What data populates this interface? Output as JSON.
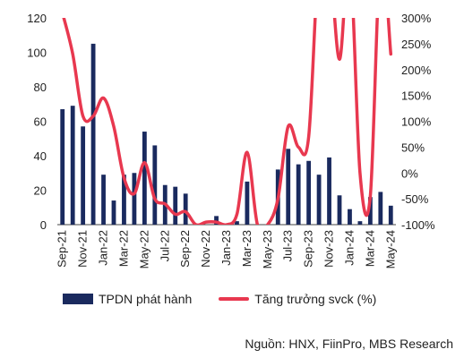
{
  "chart_data": {
    "type": "bar",
    "categories": [
      "Sep-21",
      "Oct-21",
      "Nov-21",
      "Dec-21",
      "Jan-22",
      "Feb-22",
      "Mar-22",
      "Apr-22",
      "May-22",
      "Jun-22",
      "Jul-22",
      "Aug-22",
      "Sep-22",
      "Oct-22",
      "Nov-22",
      "Dec-22",
      "Jan-23",
      "Feb-23",
      "Mar-23",
      "Apr-23",
      "May-23",
      "Jun-23",
      "Jul-23",
      "Aug-23",
      "Sep-23",
      "Oct-23",
      "Nov-23",
      "Dec-23",
      "Jan-24",
      "Feb-24",
      "Mar-24",
      "Apr-24",
      "May-24"
    ],
    "x_tick_labels": [
      "Sep-21",
      "Nov-21",
      "Jan-22",
      "Mar-22",
      "May-22",
      "Jul-22",
      "Sep-22",
      "Nov-22",
      "Jan-23",
      "Mar-23",
      "May-23",
      "Jul-23",
      "Sep-23",
      "Nov-23",
      "Jan-24",
      "Mar-24",
      "May-24"
    ],
    "series": [
      {
        "name": "TPDN phát hành",
        "type": "bar",
        "axis": "left",
        "color": "#1a2a5e",
        "values": [
          67,
          69,
          57,
          105,
          29,
          14,
          29,
          30,
          54,
          46,
          23,
          22,
          18,
          0,
          0,
          5,
          0,
          2,
          25,
          0,
          0,
          32,
          44,
          35,
          37,
          29,
          39,
          17,
          9,
          2,
          16,
          19,
          11
        ]
      },
      {
        "name": "Tăng trưởng svck (%)",
        "type": "line",
        "axis": "right",
        "color": "#e8384f",
        "values": [
          310,
          230,
          110,
          110,
          145,
          90,
          -10,
          -40,
          20,
          -50,
          -60,
          -80,
          -75,
          -100,
          -95,
          -95,
          -100,
          -80,
          40,
          -100,
          -100,
          -50,
          90,
          50,
          70,
          420,
          420,
          220,
          420,
          0,
          -45,
          420,
          230
        ]
      }
    ],
    "y_left": {
      "min": 0,
      "max": 120,
      "ticks": [
        "0",
        "20",
        "40",
        "60",
        "80",
        "100",
        "120"
      ]
    },
    "y_right": {
      "min": -100,
      "max": 300,
      "ticks": [
        "-100%",
        "-50%",
        "0%",
        "50%",
        "100%",
        "150%",
        "200%",
        "250%",
        "300%"
      ]
    },
    "legend_position": "bottom",
    "grid": false
  },
  "legend": {
    "bar_label": "TPDN phát hành",
    "line_label": "Tăng trưởng svck (%)"
  },
  "source": "Nguồn: HNX, FiinPro, MBS Research"
}
